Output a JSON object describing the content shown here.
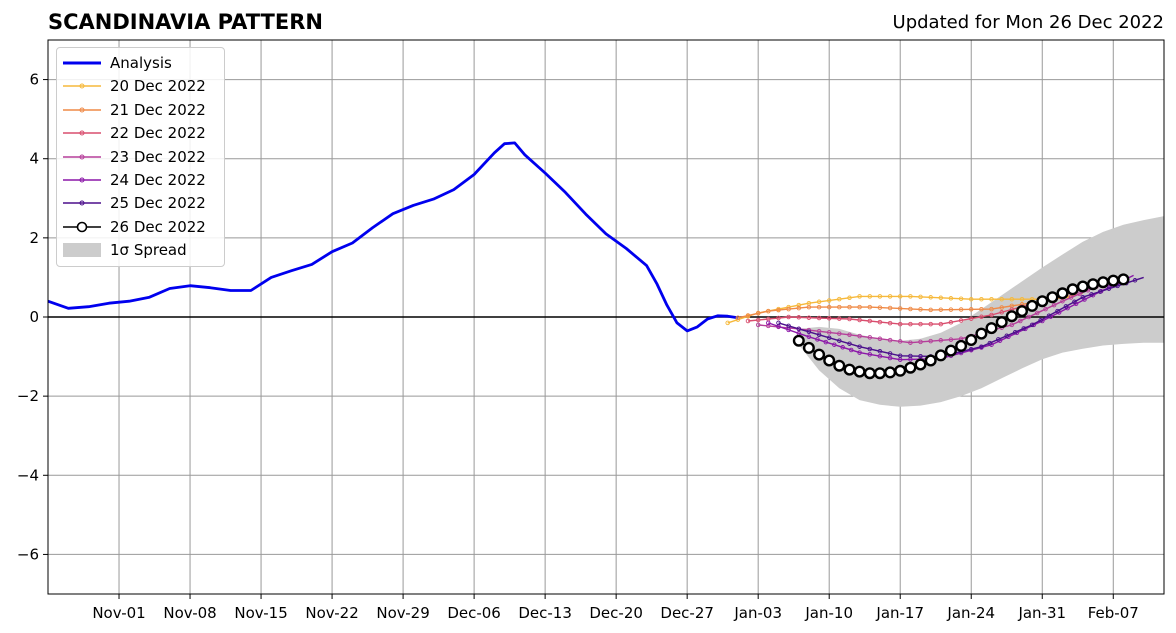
{
  "header": {
    "title": "SCANDINAVIA PATTERN",
    "updated": "Updated for Mon 26 Dec 2022"
  },
  "chart_data": {
    "type": "line",
    "x_axis": {
      "type": "date",
      "range": [
        "2022-10-25",
        "2023-02-12"
      ],
      "ticks": [
        "2022-11-01",
        "2022-11-08",
        "2022-11-15",
        "2022-11-22",
        "2022-11-29",
        "2022-12-06",
        "2022-12-13",
        "2022-12-20",
        "2022-12-27",
        "2023-01-03",
        "2023-01-10",
        "2023-01-17",
        "2023-01-24",
        "2023-01-31",
        "2023-02-07"
      ],
      "tick_labels": [
        "Nov-01",
        "Nov-08",
        "Nov-15",
        "Nov-22",
        "Nov-29",
        "Dec-06",
        "Dec-13",
        "Dec-20",
        "Dec-27",
        "Jan-03",
        "Jan-10",
        "Jan-17",
        "Jan-24",
        "Jan-31",
        "Feb-07"
      ]
    },
    "y_axis": {
      "range": [
        -7,
        7
      ],
      "ticks": [
        -6,
        -4,
        -2,
        0,
        2,
        4,
        6
      ],
      "tick_labels": [
        "−6",
        "−4",
        "−2",
        "0",
        "2",
        "4",
        "6"
      ]
    },
    "grid": true,
    "legend_position": "top-left",
    "analysis": {
      "name": "Analysis",
      "color": "#0000ee",
      "points": [
        [
          "2022-10-25",
          0.4
        ],
        [
          "2022-10-27",
          0.22
        ],
        [
          "2022-10-29",
          0.26
        ],
        [
          "2022-10-31",
          0.35
        ],
        [
          "2022-11-02",
          0.4
        ],
        [
          "2022-11-04",
          0.5
        ],
        [
          "2022-11-06",
          0.72
        ],
        [
          "2022-11-08",
          0.79
        ],
        [
          "2022-11-10",
          0.74
        ],
        [
          "2022-11-12",
          0.67
        ],
        [
          "2022-11-14",
          0.67
        ],
        [
          "2022-11-16",
          1.0
        ],
        [
          "2022-11-18",
          1.17
        ],
        [
          "2022-11-20",
          1.33
        ],
        [
          "2022-11-22",
          1.65
        ],
        [
          "2022-11-24",
          1.87
        ],
        [
          "2022-11-26",
          2.26
        ],
        [
          "2022-11-28",
          2.61
        ],
        [
          "2022-11-30",
          2.82
        ],
        [
          "2022-12-02",
          2.98
        ],
        [
          "2022-12-04",
          3.22
        ],
        [
          "2022-12-06",
          3.6
        ],
        [
          "2022-12-08",
          4.15
        ],
        [
          "2022-12-09",
          4.38
        ],
        [
          "2022-12-10",
          4.4
        ],
        [
          "2022-12-11",
          4.1
        ],
        [
          "2022-12-13",
          3.64
        ],
        [
          "2022-12-15",
          3.15
        ],
        [
          "2022-12-17",
          2.6
        ],
        [
          "2022-12-19",
          2.1
        ],
        [
          "2022-12-21",
          1.73
        ],
        [
          "2022-12-23",
          1.3
        ],
        [
          "2022-12-24",
          0.85
        ],
        [
          "2022-12-25",
          0.3
        ],
        [
          "2022-12-26",
          -0.15
        ],
        [
          "2022-12-27",
          -0.35
        ],
        [
          "2022-12-28",
          -0.25
        ],
        [
          "2022-12-29",
          -0.05
        ],
        [
          "2022-12-30",
          0.03
        ],
        [
          "2022-12-31",
          0.02
        ],
        [
          "2023-01-01",
          -0.02
        ]
      ]
    },
    "forecasts": [
      {
        "name": "20 Dec 2022",
        "color": "#f6b93b",
        "points": [
          [
            "2022-12-31",
            -0.15
          ],
          [
            "2023-01-03",
            0.1
          ],
          [
            "2023-01-08",
            0.35
          ],
          [
            "2023-01-13",
            0.52
          ],
          [
            "2023-01-18",
            0.52
          ],
          [
            "2023-01-24",
            0.45
          ],
          [
            "2023-01-31",
            0.45
          ],
          [
            "2023-02-03",
            0.5
          ]
        ]
      },
      {
        "name": "21 Dec 2022",
        "color": "#ef8a47",
        "points": [
          [
            "2023-01-01",
            -0.02
          ],
          [
            "2023-01-04",
            0.15
          ],
          [
            "2023-01-08",
            0.25
          ],
          [
            "2023-01-14",
            0.25
          ],
          [
            "2023-01-20",
            0.18
          ],
          [
            "2023-01-26",
            0.2
          ],
          [
            "2023-01-31",
            0.4
          ],
          [
            "2023-02-04",
            0.6
          ]
        ]
      },
      {
        "name": "22 Dec 2022",
        "color": "#d94e6e",
        "points": [
          [
            "2023-01-02",
            -0.1
          ],
          [
            "2023-01-06",
            0.0
          ],
          [
            "2023-01-12",
            -0.05
          ],
          [
            "2023-01-17",
            -0.18
          ],
          [
            "2023-01-21",
            -0.18
          ],
          [
            "2023-01-26",
            0.05
          ],
          [
            "2023-01-31",
            0.4
          ],
          [
            "2023-02-05",
            0.85
          ]
        ]
      },
      {
        "name": "23 Dec 2022",
        "color": "#b53e9a",
        "points": [
          [
            "2023-01-03",
            -0.2
          ],
          [
            "2023-01-07",
            -0.3
          ],
          [
            "2023-01-12",
            -0.45
          ],
          [
            "2023-01-18",
            -0.65
          ],
          [
            "2023-01-23",
            -0.55
          ],
          [
            "2023-01-28",
            -0.2
          ],
          [
            "2023-02-02",
            0.4
          ],
          [
            "2023-02-07",
            0.95
          ]
        ]
      },
      {
        "name": "24 Dec 2022",
        "color": "#8b17a8",
        "points": [
          [
            "2023-01-04",
            -0.15
          ],
          [
            "2023-01-08",
            -0.5
          ],
          [
            "2023-01-13",
            -0.9
          ],
          [
            "2023-01-17",
            -1.08
          ],
          [
            "2023-01-21",
            -1.05
          ],
          [
            "2023-01-26",
            -0.7
          ],
          [
            "2023-01-31",
            -0.1
          ],
          [
            "2023-02-05",
            0.55
          ],
          [
            "2023-02-09",
            1.05
          ]
        ]
      },
      {
        "name": "25 Dec 2022",
        "color": "#4b0f8c",
        "points": [
          [
            "2023-01-05",
            -0.15
          ],
          [
            "2023-01-09",
            -0.45
          ],
          [
            "2023-01-13",
            -0.75
          ],
          [
            "2023-01-17",
            -0.98
          ],
          [
            "2023-01-21",
            -1.0
          ],
          [
            "2023-01-25",
            -0.75
          ],
          [
            "2023-01-30",
            -0.2
          ],
          [
            "2023-02-04",
            0.5
          ],
          [
            "2023-02-10",
            1.0
          ]
        ]
      }
    ],
    "latest": {
      "name": "26 Dec 2022",
      "color": "#000000",
      "start": "2023-01-07",
      "values": [
        -0.6,
        -0.78,
        -0.95,
        -1.1,
        -1.23,
        -1.33,
        -1.38,
        -1.42,
        -1.42,
        -1.4,
        -1.36,
        -1.28,
        -1.2,
        -1.1,
        -0.97,
        -0.85,
        -0.73,
        -0.58,
        -0.42,
        -0.28,
        -0.13,
        0.02,
        0.15,
        0.28,
        0.4,
        0.5,
        0.6,
        0.7,
        0.77,
        0.83,
        0.88,
        0.92,
        0.95
      ]
    },
    "spread": {
      "name": "1σ Spread",
      "color": "#cccccc",
      "points": [
        [
          "2023-01-07",
          -0.7,
          -0.3
        ],
        [
          "2023-01-09",
          -1.35,
          -0.25
        ],
        [
          "2023-01-11",
          -1.8,
          -0.3
        ],
        [
          "2023-01-13",
          -2.1,
          -0.45
        ],
        [
          "2023-01-15",
          -2.22,
          -0.55
        ],
        [
          "2023-01-17",
          -2.27,
          -0.6
        ],
        [
          "2023-01-19",
          -2.24,
          -0.55
        ],
        [
          "2023-01-21",
          -2.15,
          -0.4
        ],
        [
          "2023-01-23",
          -2.0,
          -0.15
        ],
        [
          "2023-01-25",
          -1.8,
          0.2
        ],
        [
          "2023-01-27",
          -1.55,
          0.55
        ],
        [
          "2023-01-29",
          -1.3,
          0.9
        ],
        [
          "2023-01-31",
          -1.07,
          1.25
        ],
        [
          "2023-02-02",
          -0.9,
          1.58
        ],
        [
          "2023-02-04",
          -0.8,
          1.9
        ],
        [
          "2023-02-06",
          -0.72,
          2.15
        ],
        [
          "2023-02-08",
          -0.68,
          2.33
        ],
        [
          "2023-02-10",
          -0.65,
          2.45
        ],
        [
          "2023-02-12",
          -0.65,
          2.55
        ]
      ]
    }
  }
}
